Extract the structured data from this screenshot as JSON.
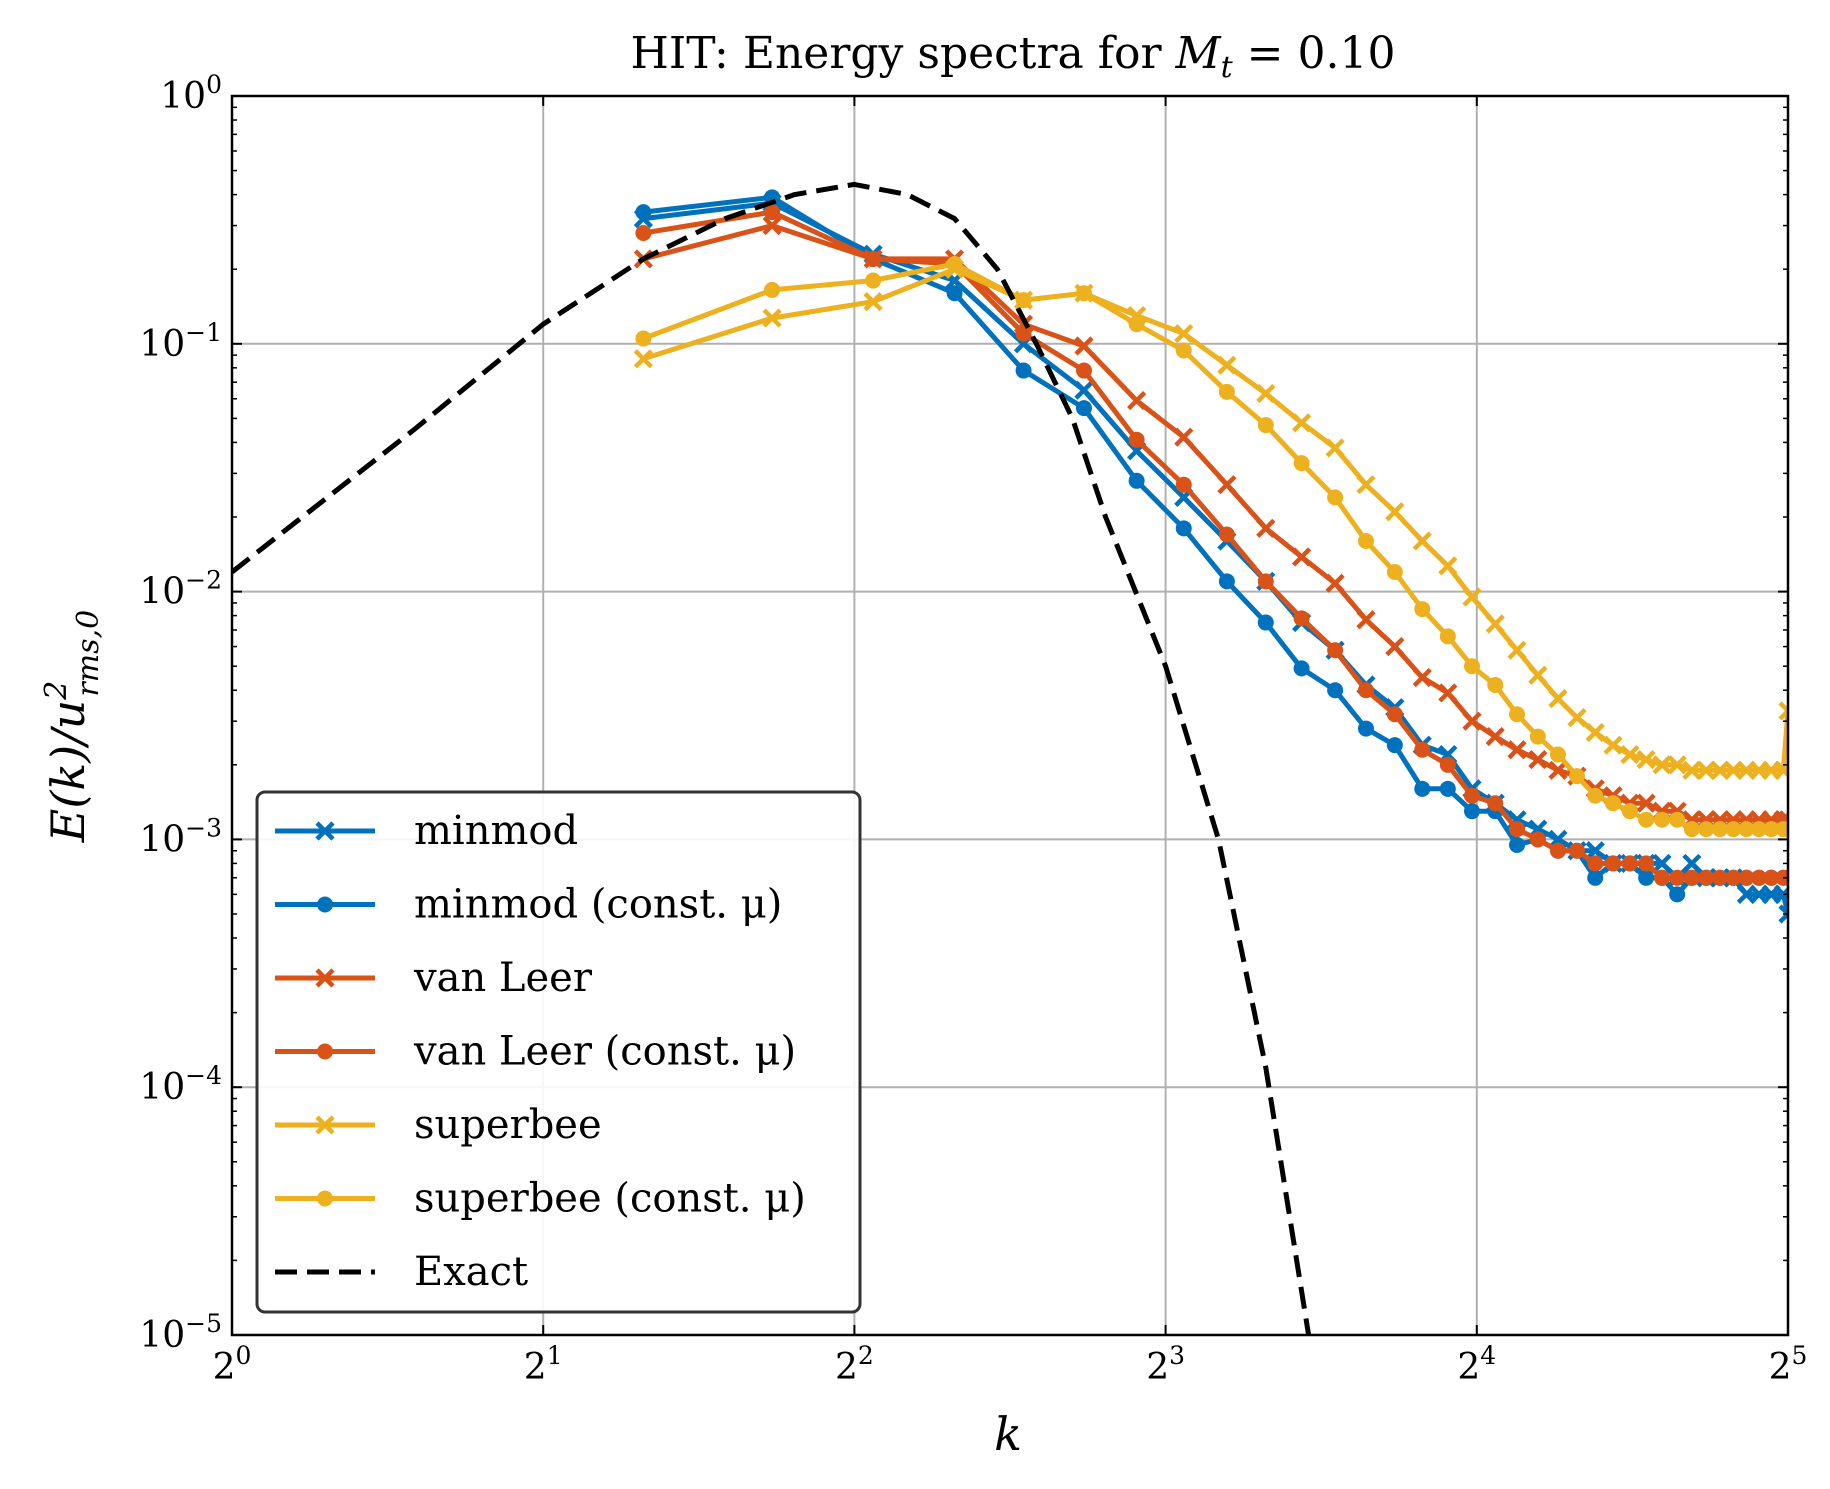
{
  "chart_data": {
    "type": "line",
    "title": "HIT: Energy spectra for M_t = 0.10",
    "title_parts": {
      "prefix": "HIT: Energy spectra for ",
      "var": "M",
      "sub": "t",
      "suffix": " = 0.10"
    },
    "xlabel": "k",
    "ylabel": "E(k)/u^2_{rms,0}",
    "ylabel_parts": {
      "main": "E(k)/u",
      "sup": "2",
      "sub": "rms,0"
    },
    "x_scale": "log2",
    "y_scale": "log10",
    "xlim": [
      1,
      32
    ],
    "ylim": [
      1e-05,
      1
    ],
    "x_ticks": [
      {
        "value": 1,
        "base": "2",
        "exp": "0"
      },
      {
        "value": 2,
        "base": "2",
        "exp": "1"
      },
      {
        "value": 4,
        "base": "2",
        "exp": "2"
      },
      {
        "value": 8,
        "base": "2",
        "exp": "3"
      },
      {
        "value": 16,
        "base": "2",
        "exp": "4"
      },
      {
        "value": 32,
        "base": "2",
        "exp": "5"
      }
    ],
    "y_ticks": [
      {
        "value": 1,
        "base": "10",
        "exp": "0"
      },
      {
        "value": 0.1,
        "base": "10",
        "exp": "−1"
      },
      {
        "value": 0.01,
        "base": "10",
        "exp": "−2"
      },
      {
        "value": 0.001,
        "base": "10",
        "exp": "−3"
      },
      {
        "value": 0.0001,
        "base": "10",
        "exp": "−4"
      },
      {
        "value": 1e-05,
        "base": "10",
        "exp": "−5"
      }
    ],
    "grid": true,
    "legend_position": "lower-left",
    "x": [
      2.5,
      3.33,
      4.17,
      5.0,
      5.83,
      6.67,
      7.5,
      8.33,
      9.17,
      10.0,
      10.83,
      11.67,
      12.5,
      13.33,
      14.17,
      15.0,
      15.83,
      16.67,
      17.5,
      18.33,
      19.17,
      20.0,
      20.83,
      21.67,
      22.5,
      23.33,
      24.17,
      25.0,
      25.83,
      26.67,
      27.5,
      28.33,
      29.17,
      30.0,
      30.83,
      31.67,
      32.0
    ],
    "series": [
      {
        "name": "minmod",
        "color": "#0072bd",
        "marker": "x",
        "values": [
          0.32,
          0.37,
          0.23,
          0.18,
          0.1,
          0.065,
          0.037,
          0.024,
          0.016,
          0.011,
          0.0075,
          0.0058,
          0.0042,
          0.0034,
          0.0024,
          0.0022,
          0.0016,
          0.0014,
          0.0012,
          0.0011,
          0.001,
          0.0009,
          0.0009,
          0.0008,
          0.0008,
          0.0008,
          0.0008,
          0.0007,
          0.0008,
          0.0007,
          0.0007,
          0.0007,
          0.0006,
          0.0006,
          0.0006,
          0.0006,
          0.0005
        ]
      },
      {
        "name": "minmod (const. μ)",
        "color": "#0072bd",
        "marker": "o",
        "values": [
          0.34,
          0.39,
          0.22,
          0.16,
          0.078,
          0.055,
          0.028,
          0.018,
          0.011,
          0.0075,
          0.0049,
          0.004,
          0.0028,
          0.0024,
          0.0016,
          0.0016,
          0.0013,
          0.0013,
          0.00095,
          0.001,
          0.0009,
          0.0009,
          0.0007,
          0.0008,
          0.0008,
          0.0007,
          0.0007,
          0.0006,
          0.0007,
          0.0007,
          0.0007,
          0.0007,
          0.0007,
          0.0007,
          0.0007,
          0.0007,
          0.0007
        ]
      },
      {
        "name": "van Leer",
        "color": "#d95319",
        "marker": "x",
        "values": [
          0.22,
          0.3,
          0.22,
          0.22,
          0.12,
          0.098,
          0.059,
          0.042,
          0.027,
          0.018,
          0.0138,
          0.0108,
          0.0077,
          0.006,
          0.0045,
          0.0039,
          0.003,
          0.0026,
          0.0023,
          0.0021,
          0.0019,
          0.0018,
          0.0016,
          0.0015,
          0.0014,
          0.0014,
          0.0013,
          0.0013,
          0.0012,
          0.0012,
          0.0012,
          0.0012,
          0.0012,
          0.0012,
          0.0012,
          0.0012,
          0.0012
        ]
      },
      {
        "name": "van Leer (const. μ)",
        "color": "#d95319",
        "marker": "o",
        "values": [
          0.28,
          0.34,
          0.22,
          0.21,
          0.11,
          0.078,
          0.041,
          0.027,
          0.017,
          0.011,
          0.0078,
          0.0058,
          0.004,
          0.0032,
          0.0023,
          0.002,
          0.0015,
          0.0014,
          0.0011,
          0.001,
          0.0009,
          0.0009,
          0.0008,
          0.0008,
          0.0008,
          0.0008,
          0.0007,
          0.0007,
          0.0007,
          0.0007,
          0.0007,
          0.0007,
          0.0007,
          0.0007,
          0.0007,
          0.0007,
          0.0007
        ]
      },
      {
        "name": "superbee",
        "color": "#edb120",
        "marker": "x",
        "values": [
          0.087,
          0.127,
          0.148,
          0.2,
          0.15,
          0.16,
          0.13,
          0.11,
          0.082,
          0.063,
          0.048,
          0.038,
          0.027,
          0.021,
          0.016,
          0.0127,
          0.0095,
          0.0074,
          0.0058,
          0.0046,
          0.0037,
          0.0031,
          0.0027,
          0.0024,
          0.0022,
          0.0021,
          0.002,
          0.002,
          0.0019,
          0.0019,
          0.0019,
          0.0019,
          0.0019,
          0.0019,
          0.0019,
          0.0019,
          0.0033
        ]
      },
      {
        "name": "superbee (const. μ)",
        "color": "#edb120",
        "marker": "o",
        "values": [
          0.105,
          0.165,
          0.18,
          0.21,
          0.15,
          0.16,
          0.12,
          0.094,
          0.064,
          0.047,
          0.033,
          0.024,
          0.016,
          0.012,
          0.0085,
          0.0066,
          0.005,
          0.0042,
          0.0032,
          0.0026,
          0.0022,
          0.0018,
          0.0015,
          0.0014,
          0.0013,
          0.0012,
          0.0012,
          0.0012,
          0.0011,
          0.0011,
          0.0011,
          0.0011,
          0.0011,
          0.0011,
          0.0011,
          0.0011,
          0.0011
        ]
      },
      {
        "name": "Exact",
        "color": "#000000",
        "marker": "none",
        "dashed": true,
        "x": [
          1,
          1.5,
          2,
          2.5,
          3,
          3.5,
          4,
          4.5,
          5,
          5.5,
          6,
          6.5,
          7,
          8,
          9,
          10,
          11
        ],
        "values": [
          0.012,
          0.045,
          0.12,
          0.22,
          0.32,
          0.4,
          0.44,
          0.4,
          0.32,
          0.2,
          0.1,
          0.05,
          0.02,
          0.005,
          0.001,
          0.00012,
          1e-05
        ]
      }
    ]
  }
}
